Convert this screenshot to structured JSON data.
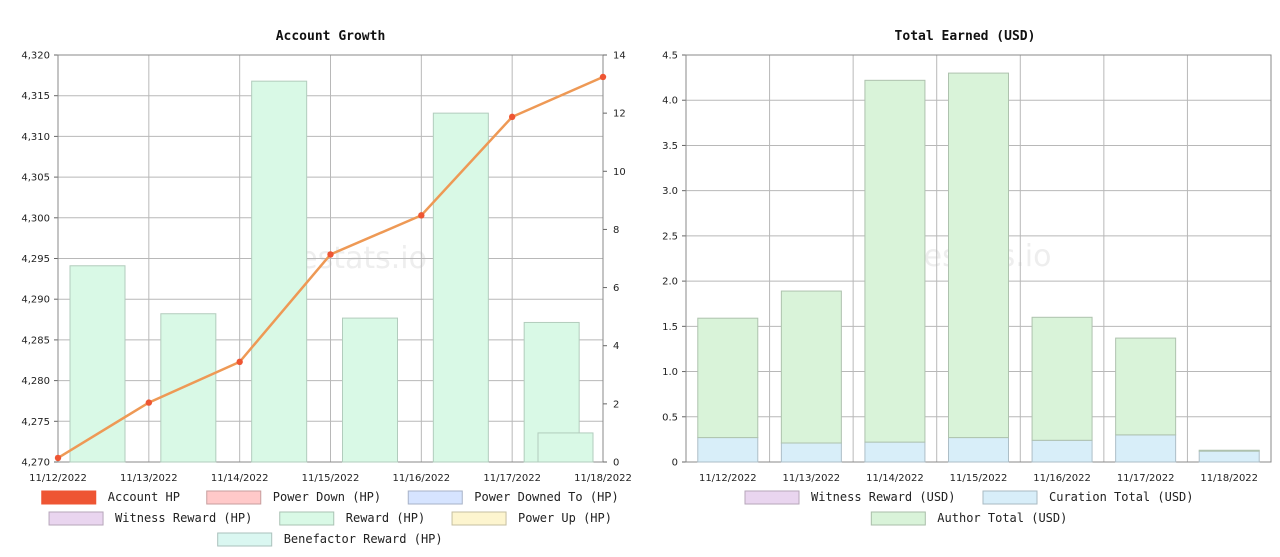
{
  "watermark": "hivestats.io",
  "chart_data": [
    {
      "type": "bar+line",
      "title": "Account Growth",
      "categories": [
        "11/12/2022",
        "11/13/2022",
        "11/14/2022",
        "11/15/2022",
        "11/16/2022",
        "11/17/2022",
        "11/18/2022"
      ],
      "y_left": {
        "ylim": [
          4270,
          4320
        ],
        "ticks": [
          "4,270",
          "4,275",
          "4,280",
          "4,285",
          "4,290",
          "4,295",
          "4,300",
          "4,305",
          "4,310",
          "4,315",
          "4,320"
        ]
      },
      "y_right": {
        "ylim": [
          0,
          14
        ],
        "ticks": [
          "0",
          "2",
          "4",
          "6",
          "8",
          "10",
          "12",
          "14"
        ]
      },
      "series": [
        {
          "name": "Account HP",
          "kind": "line",
          "axis": "left",
          "color": "#ee5533",
          "line_color": "#ee9955",
          "values": [
            4270.5,
            4277.3,
            4282.3,
            4295.5,
            4300.3,
            4312.4,
            4317.3
          ]
        },
        {
          "name": "Power Down (HP)",
          "kind": "bar",
          "axis": "right",
          "color": "#ffc9c9",
          "values": [
            0,
            0,
            0,
            0,
            0,
            0,
            0
          ]
        },
        {
          "name": "Power Downed To (HP)",
          "kind": "bar",
          "axis": "right",
          "color": "#d6e4ff",
          "values": [
            0,
            0,
            0,
            0,
            0,
            0,
            0
          ]
        },
        {
          "name": "Witness Reward (HP)",
          "kind": "bar",
          "axis": "right",
          "color": "#e9d5ef",
          "values": [
            0,
            0,
            0,
            0,
            0,
            0,
            0
          ]
        },
        {
          "name": "Reward (HP)",
          "kind": "bar",
          "axis": "right",
          "color": "#d9f9e6",
          "values": [
            6.75,
            5.1,
            13.1,
            4.95,
            12.0,
            4.8,
            1.0
          ]
        },
        {
          "name": "Power Up (HP)",
          "kind": "bar",
          "axis": "right",
          "color": "#fdf5cf",
          "values": [
            0,
            0,
            0,
            0,
            0,
            0,
            0
          ]
        },
        {
          "name": "Benefactor Reward (HP)",
          "kind": "bar",
          "axis": "right",
          "color": "#daf7f1",
          "values": [
            0,
            0,
            0,
            0,
            0,
            0,
            0
          ]
        }
      ],
      "legend_rows": [
        [
          "Account HP",
          "Power Down (HP)",
          "Power Downed To (HP)"
        ],
        [
          "Witness Reward (HP)",
          "Reward (HP)",
          "Power Up (HP)"
        ],
        [
          "Benefactor Reward (HP)"
        ]
      ]
    },
    {
      "type": "stacked-bar",
      "title": "Total Earned (USD)",
      "categories": [
        "11/12/2022",
        "11/13/2022",
        "11/14/2022",
        "11/15/2022",
        "11/16/2022",
        "11/17/2022",
        "11/18/2022"
      ],
      "ylim": [
        0,
        4.5
      ],
      "ticks": [
        "0",
        "0.5",
        "1.0",
        "1.5",
        "2.0",
        "2.5",
        "3.0",
        "3.5",
        "4.0",
        "4.5"
      ],
      "series": [
        {
          "name": "Witness Reward (USD)",
          "color": "#e9d5ef",
          "values": [
            0,
            0,
            0,
            0,
            0,
            0,
            0
          ]
        },
        {
          "name": "Curation Total (USD)",
          "color": "#d8eef9",
          "values": [
            0.27,
            0.21,
            0.22,
            0.27,
            0.24,
            0.3,
            0.12
          ]
        },
        {
          "name": "Author Total (USD)",
          "color": "#d9f3d9",
          "values": [
            1.32,
            1.68,
            4.0,
            4.03,
            1.36,
            1.07,
            0.01
          ]
        }
      ],
      "legend_rows": [
        [
          "Witness Reward (USD)",
          "Curation Total (USD)"
        ],
        [
          "Author Total (USD)"
        ]
      ]
    }
  ]
}
